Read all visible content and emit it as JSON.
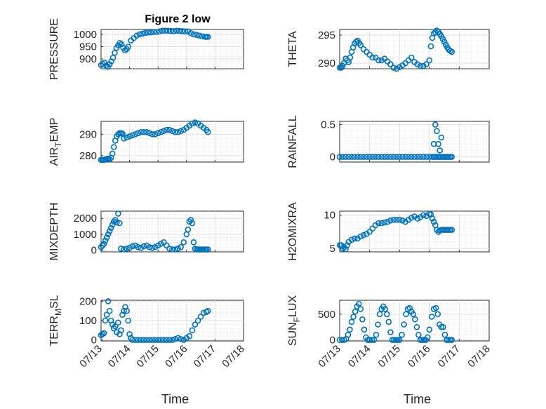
{
  "chart_data": [
    {
      "type": "scatter",
      "title": "Figure 2 low",
      "ylabel": "PRESSURE",
      "ylim": [
        860,
        1020
      ],
      "yticks": [
        "900",
        "950",
        "1000"
      ],
      "yticks_values": [
        900,
        950,
        1000
      ],
      "xlim": [
        0,
        5
      ],
      "xticks": [],
      "x": [
        0.0,
        0.06,
        0.12,
        0.18,
        0.24,
        0.3,
        0.36,
        0.42,
        0.48,
        0.54,
        0.6,
        0.66,
        0.72,
        0.78,
        0.84,
        0.9,
        0.96,
        1.05,
        1.15,
        1.25,
        1.35,
        1.45,
        1.55,
        1.65,
        1.75,
        1.85,
        1.95,
        2.05,
        2.15,
        2.25,
        2.35,
        2.45,
        2.55,
        2.65,
        2.75,
        2.85,
        2.95,
        3.05,
        3.15,
        3.25,
        3.35,
        3.45,
        3.55,
        3.65,
        3.7,
        3.75
      ],
      "y": [
        875,
        880,
        885,
        872,
        868,
        878,
        890,
        905,
        925,
        945,
        955,
        965,
        960,
        945,
        935,
        940,
        950,
        975,
        985,
        995,
        1000,
        1003,
        1006,
        1008,
        1008,
        1010,
        1010,
        1012,
        1015,
        1015,
        1015,
        1014,
        1013,
        1015,
        1014,
        1013,
        1012,
        1012,
        1005,
        1000,
        998,
        995,
        992,
        990,
        990,
        990
      ]
    },
    {
      "type": "scatter",
      "title": "",
      "ylabel": "THETA",
      "ylim": [
        289,
        296
      ],
      "yticks": [
        "290",
        "295"
      ],
      "yticks_values": [
        290,
        295
      ],
      "xlim": [
        0,
        5
      ],
      "xticks": [],
      "x": [
        0.0,
        0.05,
        0.1,
        0.15,
        0.2,
        0.25,
        0.3,
        0.35,
        0.4,
        0.45,
        0.5,
        0.55,
        0.6,
        0.65,
        0.7,
        0.8,
        0.9,
        1.0,
        1.1,
        1.2,
        1.3,
        1.4,
        1.5,
        1.6,
        1.7,
        1.8,
        1.9,
        2.0,
        2.1,
        2.2,
        2.3,
        2.4,
        2.5,
        2.6,
        2.7,
        2.8,
        2.9,
        3.0,
        3.05,
        3.1,
        3.15,
        3.2,
        3.25,
        3.3,
        3.35,
        3.4,
        3.45,
        3.5,
        3.55,
        3.6,
        3.65,
        3.7,
        3.75
      ],
      "y": [
        289.2,
        289.2,
        289.5,
        290.0,
        290.8,
        290.5,
        290.2,
        291.0,
        292.0,
        292.8,
        293.5,
        293.8,
        294.0,
        293.6,
        293.2,
        292.5,
        292.0,
        291.5,
        291.0,
        291.0,
        290.5,
        290.5,
        290.8,
        290.3,
        289.8,
        289.2,
        289.0,
        289.3,
        289.6,
        290.0,
        290.5,
        291.0,
        290.2,
        289.8,
        289.5,
        289.5,
        289.8,
        290.5,
        293.0,
        294.5,
        295.3,
        295.5,
        295.8,
        295.6,
        295.2,
        294.8,
        294.3,
        293.8,
        293.3,
        292.8,
        292.4,
        292.2,
        292.0
      ]
    },
    {
      "type": "scatter",
      "title": "",
      "ylabel": "AIR_TEMP",
      "ylim": [
        277,
        296
      ],
      "yticks": [
        "280",
        "290"
      ],
      "yticks_values": [
        280,
        290
      ],
      "xlim": [
        0,
        5
      ],
      "xticks": [],
      "x": [
        0.0,
        0.05,
        0.1,
        0.15,
        0.2,
        0.25,
        0.3,
        0.35,
        0.4,
        0.45,
        0.5,
        0.55,
        0.6,
        0.65,
        0.7,
        0.75,
        0.8,
        0.9,
        1.0,
        1.1,
        1.2,
        1.3,
        1.4,
        1.5,
        1.6,
        1.7,
        1.8,
        1.9,
        2.0,
        2.1,
        2.2,
        2.3,
        2.4,
        2.5,
        2.6,
        2.7,
        2.8,
        2.9,
        3.0,
        3.1,
        3.2,
        3.3,
        3.4,
        3.5,
        3.6,
        3.7,
        3.75
      ],
      "y": [
        278.0,
        278.0,
        278.0,
        278.2,
        278.5,
        278.5,
        278.3,
        279.0,
        281.0,
        284.0,
        287.0,
        289.0,
        290.0,
        290.5,
        290.5,
        290.3,
        288.0,
        288.5,
        289.0,
        289.5,
        290.0,
        290.5,
        291.0,
        291.0,
        291.0,
        290.5,
        290.0,
        290.0,
        290.5,
        291.0,
        291.5,
        292.0,
        292.0,
        291.5,
        291.0,
        291.0,
        291.5,
        292.0,
        293.0,
        294.0,
        295.0,
        295.5,
        295.0,
        294.0,
        293.0,
        292.0,
        291.0
      ]
    },
    {
      "type": "scatter",
      "title": "",
      "ylabel": "RAINFALL",
      "ylim": [
        -0.08,
        0.55
      ],
      "yticks": [
        "0",
        "0.5"
      ],
      "yticks_values": [
        0,
        0.5
      ],
      "xlim": [
        0,
        5
      ],
      "xticks": [],
      "x": [
        0.0,
        0.1,
        0.2,
        0.3,
        0.4,
        0.5,
        0.6,
        0.7,
        0.8,
        0.9,
        1.0,
        1.1,
        1.2,
        1.3,
        1.4,
        1.5,
        1.6,
        1.7,
        1.8,
        1.9,
        2.0,
        2.1,
        2.2,
        2.3,
        2.4,
        2.5,
        2.6,
        2.7,
        2.8,
        2.9,
        3.0,
        3.1,
        3.15,
        3.2,
        3.25,
        3.3,
        3.35,
        3.4,
        3.45,
        3.5,
        3.55,
        3.6,
        3.65,
        3.7,
        3.75,
        3.15,
        3.2,
        3.25,
        3.3,
        3.35,
        3.4
      ],
      "y": [
        0,
        0,
        0,
        0,
        0,
        0,
        0,
        0,
        0,
        0,
        0,
        0,
        0,
        0,
        0,
        0,
        0,
        0,
        0,
        0,
        0,
        0,
        0,
        0,
        0,
        0,
        0,
        0,
        0,
        0,
        0,
        0,
        0,
        0,
        0,
        0,
        0,
        0,
        0,
        0,
        0,
        0,
        0,
        0,
        0,
        0.2,
        0.5,
        0.4,
        0.2,
        0.1,
        0.3
      ]
    },
    {
      "type": "scatter",
      "title": "",
      "ylabel": "MIXDEPTH",
      "ylim": [
        -100,
        2450
      ],
      "yticks": [
        "0",
        "1000",
        "2000"
      ],
      "yticks_values": [
        0,
        1000,
        2000
      ],
      "xlim": [
        0,
        5
      ],
      "xticks": [],
      "x": [
        0.0,
        0.05,
        0.1,
        0.15,
        0.2,
        0.25,
        0.3,
        0.35,
        0.4,
        0.45,
        0.5,
        0.55,
        0.6,
        0.65,
        0.7,
        0.8,
        0.9,
        1.0,
        1.1,
        1.2,
        1.3,
        1.4,
        1.5,
        1.6,
        1.7,
        1.8,
        1.9,
        2.0,
        2.1,
        2.2,
        2.3,
        2.4,
        2.5,
        2.6,
        2.7,
        2.8,
        2.9,
        3.0,
        3.05,
        3.1,
        3.15,
        3.2,
        3.25,
        3.3,
        3.35,
        3.4,
        3.45,
        3.5,
        3.55,
        3.6,
        3.65,
        3.7,
        3.75
      ],
      "y": [
        200,
        300,
        400,
        600,
        800,
        1000,
        1200,
        1400,
        1600,
        1800,
        1900,
        1750,
        2300,
        1700,
        100,
        50,
        100,
        150,
        250,
        300,
        200,
        150,
        250,
        300,
        200,
        150,
        200,
        300,
        400,
        500,
        300,
        100,
        50,
        50,
        100,
        200,
        500,
        1000,
        1300,
        1800,
        1900,
        1700,
        500,
        100,
        50,
        50,
        50,
        50,
        50,
        50,
        50,
        50,
        50
      ]
    },
    {
      "type": "scatter",
      "title": "",
      "ylabel": "H2OMIXRA",
      "ylim": [
        4.5,
        10.6
      ],
      "yticks": [
        "5",
        "10"
      ],
      "yticks_values": [
        5,
        10
      ],
      "xlim": [
        0,
        5
      ],
      "xticks": [],
      "x": [
        0.0,
        0.05,
        0.1,
        0.15,
        0.2,
        0.25,
        0.3,
        0.4,
        0.5,
        0.6,
        0.7,
        0.8,
        0.9,
        1.0,
        1.1,
        1.2,
        1.3,
        1.4,
        1.5,
        1.6,
        1.7,
        1.8,
        1.9,
        2.0,
        2.1,
        2.2,
        2.3,
        2.4,
        2.5,
        2.6,
        2.7,
        2.8,
        2.9,
        3.0,
        3.05,
        3.1,
        3.15,
        3.2,
        3.25,
        3.3,
        3.35,
        3.4,
        3.45,
        3.5,
        3.55,
        3.6,
        3.65,
        3.7,
        3.75
      ],
      "y": [
        5.5,
        5.5,
        5.0,
        5.2,
        4.9,
        5.5,
        6.0,
        6.3,
        6.5,
        6.5,
        6.8,
        7.0,
        7.2,
        7.5,
        8.0,
        8.5,
        8.8,
        8.8,
        8.9,
        9.0,
        9.2,
        9.3,
        9.3,
        9.3,
        9.2,
        9.0,
        9.3,
        9.6,
        9.8,
        9.5,
        9.7,
        10.0,
        9.9,
        10.2,
        10.1,
        9.5,
        9.0,
        8.5,
        7.8,
        7.5,
        7.7,
        7.8,
        7.8,
        7.8,
        7.8,
        7.8,
        7.8,
        7.8,
        7.8
      ]
    },
    {
      "type": "scatter",
      "title": "",
      "ylabel": "TERR_MSL",
      "ylim": [
        -5,
        205
      ],
      "yticks": [
        "0",
        "100",
        "200"
      ],
      "yticks_values": [
        0,
        100,
        200
      ],
      "xlim": [
        0,
        5
      ],
      "xticks": [
        "07/13",
        "07/14",
        "07/15",
        "07/16",
        "07/17",
        "07/18"
      ],
      "xlabel": "Time",
      "x": [
        0.0,
        0.05,
        0.1,
        0.15,
        0.2,
        0.25,
        0.3,
        0.35,
        0.4,
        0.45,
        0.5,
        0.55,
        0.6,
        0.65,
        0.7,
        0.75,
        0.8,
        0.85,
        0.9,
        0.95,
        1.0,
        1.05,
        1.1,
        1.2,
        1.3,
        1.4,
        1.5,
        1.6,
        1.7,
        1.8,
        1.9,
        2.0,
        2.1,
        2.2,
        2.3,
        2.4,
        2.5,
        2.6,
        2.7,
        2.8,
        2.9,
        3.0,
        3.1,
        3.2,
        3.3,
        3.4,
        3.5,
        3.6,
        3.7,
        3.75
      ],
      "y": [
        25,
        30,
        35,
        100,
        130,
        200,
        150,
        100,
        80,
        60,
        70,
        40,
        90,
        30,
        50,
        130,
        150,
        170,
        150,
        100,
        30,
        10,
        0,
        0,
        0,
        0,
        0,
        0,
        0,
        0,
        0,
        0,
        0,
        0,
        0,
        0,
        0,
        5,
        10,
        5,
        0,
        10,
        20,
        50,
        80,
        100,
        120,
        140,
        145,
        150
      ]
    },
    {
      "type": "scatter",
      "title": "",
      "ylabel": "SUN_FLUX",
      "ylim": [
        -20,
        770
      ],
      "yticks": [
        "0",
        "500"
      ],
      "yticks_values": [
        0,
        500
      ],
      "xlim": [
        0,
        5
      ],
      "xticks": [
        "07/13",
        "07/14",
        "07/15",
        "07/16",
        "07/17",
        "07/18"
      ],
      "xlabel": "Time",
      "x": [
        0.0,
        0.08,
        0.15,
        0.22,
        0.28,
        0.34,
        0.4,
        0.46,
        0.52,
        0.58,
        0.64,
        0.7,
        0.76,
        0.82,
        0.88,
        0.94,
        1.0,
        1.08,
        1.15,
        1.22,
        1.28,
        1.34,
        1.4,
        1.46,
        1.52,
        1.58,
        1.64,
        1.7,
        1.76,
        1.82,
        1.88,
        1.94,
        2.0,
        2.08,
        2.15,
        2.22,
        2.28,
        2.34,
        2.4,
        2.46,
        2.52,
        2.58,
        2.64,
        2.7,
        2.76,
        2.82,
        2.88,
        2.94,
        3.0,
        3.08,
        3.15,
        3.22,
        3.28,
        3.34,
        3.4,
        3.46,
        3.52,
        3.58,
        3.64,
        3.7,
        3.75
      ],
      "y": [
        0,
        0,
        0,
        20,
        100,
        200,
        350,
        450,
        550,
        650,
        700,
        600,
        400,
        200,
        50,
        0,
        0,
        0,
        0,
        100,
        300,
        500,
        600,
        650,
        600,
        500,
        350,
        150,
        0,
        0,
        0,
        0,
        0,
        100,
        300,
        500,
        600,
        620,
        550,
        500,
        400,
        250,
        100,
        0,
        0,
        0,
        0,
        50,
        200,
        450,
        600,
        620,
        500,
        300,
        250,
        250,
        100,
        0,
        0,
        0,
        0
      ]
    }
  ]
}
